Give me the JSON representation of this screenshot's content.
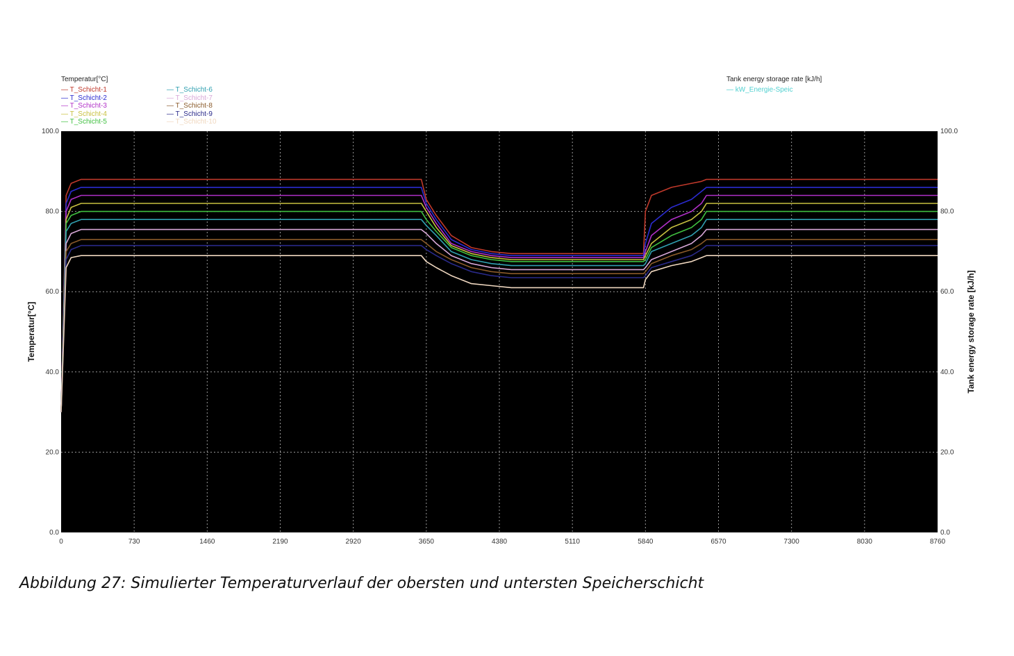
{
  "caption": "Abbildung 27: Simulierter Temperaturverlauf der obersten und untersten Speicherschicht",
  "chart_data": {
    "type": "line",
    "ylabel_left": "Temperatur[°C]",
    "ylabel_right": "Tank energy storage rate [kJ/h]",
    "xlim": [
      0,
      8760
    ],
    "ylim": [
      0,
      100
    ],
    "ylim_right": [
      0,
      100
    ],
    "x_ticks": [
      "0",
      "730",
      "1460",
      "2190",
      "2920",
      "3650",
      "4380",
      "5110",
      "5840",
      "6570",
      "7300",
      "8030",
      "8760"
    ],
    "y_ticks": [
      "0.0",
      "20.0",
      "40.0",
      "60.0",
      "80.0",
      "100.0"
    ],
    "y_ticks_right": [
      "0.0",
      "20.0",
      "40.0",
      "60.0",
      "80.0",
      "100.0"
    ],
    "grid": true,
    "background": "#000000",
    "legend_left_title": "Temperatur[°C]",
    "legend_right_title": "Tank energy storage rate [kJ/h]",
    "x": [
      0,
      50,
      100,
      200,
      3600,
      3650,
      3750,
      3900,
      4100,
      4300,
      4500,
      5000,
      5820,
      5840,
      5900,
      6100,
      6300,
      6400,
      6450,
      6600,
      8760
    ],
    "series": [
      {
        "name": "T_Schicht-1",
        "color": "#c0392b",
        "values": [
          30,
          84,
          87,
          88,
          88,
          83,
          79,
          74,
          71,
          70,
          69.5,
          69.5,
          69.5,
          80,
          84,
          86,
          87,
          87.5,
          88,
          88,
          88
        ]
      },
      {
        "name": "T_Schicht-2",
        "color": "#2b2bd0",
        "values": [
          30,
          82,
          85,
          86,
          86,
          82,
          78,
          73,
          70.5,
          69.5,
          69,
          69,
          69,
          72,
          77,
          81,
          83,
          85,
          86,
          86,
          86
        ]
      },
      {
        "name": "T_Schicht-3",
        "color": "#b030c8",
        "values": [
          30,
          80,
          83,
          84,
          84,
          81,
          77,
          72,
          70,
          69,
          68.5,
          68.5,
          68.5,
          70,
          74,
          78,
          80,
          82,
          84,
          84,
          84
        ]
      },
      {
        "name": "T_Schicht-4",
        "color": "#c8c040",
        "values": [
          30,
          78,
          81,
          82,
          82,
          80,
          76,
          71.5,
          69.5,
          68.5,
          68,
          68,
          68,
          69,
          72,
          76,
          78,
          80,
          82,
          82,
          82
        ]
      },
      {
        "name": "T_Schicht-5",
        "color": "#40c040",
        "values": [
          30,
          77,
          79,
          80,
          80,
          78,
          75,
          71,
          69,
          68,
          67.5,
          67.5,
          67.5,
          68,
          71,
          74,
          76,
          78,
          80,
          80,
          80
        ]
      },
      {
        "name": "T_Schicht-6",
        "color": "#30a0b0",
        "values": [
          30,
          75,
          77,
          78,
          78,
          76.5,
          74,
          70,
          68,
          67,
          66.5,
          66.5,
          66.5,
          67,
          70,
          72,
          74,
          76,
          78,
          78,
          78
        ]
      },
      {
        "name": "T_Schicht-7",
        "color": "#d8a8d8",
        "values": [
          30,
          72,
          74.5,
          75.5,
          75.5,
          74.5,
          72,
          69,
          67,
          66,
          65.5,
          65.5,
          65.5,
          66,
          68,
          70,
          72,
          74,
          75.5,
          75.5,
          75.5
        ]
      },
      {
        "name": "T_Schicht-8",
        "color": "#8a5a2a",
        "values": [
          30,
          70,
          72,
          73,
          73,
          72,
          70,
          68,
          66,
          65,
          64.5,
          64.5,
          64.5,
          65,
          67,
          69,
          70.5,
          72,
          73,
          73,
          73
        ]
      },
      {
        "name": "T_Schicht-9",
        "color": "#2a2a8a",
        "values": [
          30,
          68,
          70.5,
          71.5,
          71.5,
          70.5,
          69,
          67,
          65,
          64,
          63.5,
          63.5,
          63.5,
          64,
          66,
          67.5,
          69,
          70.5,
          71.5,
          71.5,
          71.5
        ]
      },
      {
        "name": "T_Schicht-10",
        "color": "#f0d8c0",
        "values": [
          30,
          66,
          68.5,
          69,
          69,
          67.5,
          66,
          64,
          62,
          61.5,
          61,
          61,
          61,
          63,
          65,
          66.5,
          67.5,
          68.5,
          69,
          69,
          69
        ]
      }
    ],
    "series_right": [
      {
        "name": "kW_Energie-Speic",
        "color": "#50d0d0"
      }
    ]
  }
}
